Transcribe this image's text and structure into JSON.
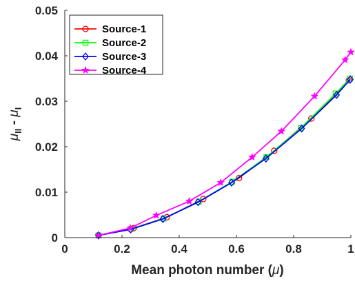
{
  "chart_data": {
    "type": "line",
    "xlabel_main": "Mean photon number (",
    "xlabel_symbol": "μ",
    "xlabel_close": ")",
    "ylabel_mu1": "μ",
    "ylabel_sub1": "II",
    "ylabel_minus": " - ",
    "ylabel_mu2": "μ",
    "ylabel_sub2": "I",
    "xlim": [
      0,
      1
    ],
    "ylim": [
      0,
      0.05
    ],
    "xticks": [
      0,
      0.2,
      0.4,
      0.6,
      0.8,
      1
    ],
    "xtick_labels": [
      "0",
      "0.2",
      "0.4",
      "0.6",
      "0.8",
      "1"
    ],
    "yticks": [
      0,
      0.01,
      0.02,
      0.03,
      0.04,
      0.05
    ],
    "ytick_labels": [
      "0",
      "0.01",
      "0.02",
      "0.03",
      "0.04",
      "0.05"
    ],
    "grid": false,
    "legend_position": "top-left",
    "series": [
      {
        "name": "Source-1",
        "color": "#ff0000",
        "marker": "circle",
        "points": [
          [
            0.118,
            0.0005
          ],
          [
            0.241,
            0.0021
          ],
          [
            0.357,
            0.0045
          ],
          [
            0.484,
            0.0085
          ],
          [
            0.609,
            0.0131
          ],
          [
            0.732,
            0.0191
          ],
          [
            0.862,
            0.0262
          ],
          [
            0.993,
            0.0346
          ]
        ]
      },
      {
        "name": "Source-2",
        "color": "#00ff00",
        "marker": "square",
        "points": [
          [
            0.118,
            0.0005
          ],
          [
            0.232,
            0.0019
          ],
          [
            0.345,
            0.0042
          ],
          [
            0.468,
            0.0079
          ],
          [
            0.585,
            0.0123
          ],
          [
            0.705,
            0.0177
          ],
          [
            0.825,
            0.0241
          ],
          [
            0.947,
            0.0317
          ],
          [
            0.997,
            0.035
          ]
        ]
      },
      {
        "name": "Source-3",
        "color": "#0000ff",
        "marker": "diamond",
        "points": [
          [
            0.118,
            0.0005
          ],
          [
            0.23,
            0.0018
          ],
          [
            0.343,
            0.0041
          ],
          [
            0.466,
            0.0078
          ],
          [
            0.583,
            0.0121
          ],
          [
            0.703,
            0.0174
          ],
          [
            0.828,
            0.024
          ],
          [
            0.95,
            0.0314
          ],
          [
            0.998,
            0.0348
          ]
        ]
      },
      {
        "name": "Source-4",
        "color": "#ff00ff",
        "marker": "star",
        "points": [
          [
            0.118,
            0.0005
          ],
          [
            0.229,
            0.0021
          ],
          [
            0.32,
            0.0049
          ],
          [
            0.435,
            0.008
          ],
          [
            0.545,
            0.0121
          ],
          [
            0.655,
            0.0177
          ],
          [
            0.757,
            0.0234
          ],
          [
            0.873,
            0.0311
          ],
          [
            0.98,
            0.0391
          ],
          [
            1.0,
            0.0408
          ]
        ]
      }
    ]
  }
}
